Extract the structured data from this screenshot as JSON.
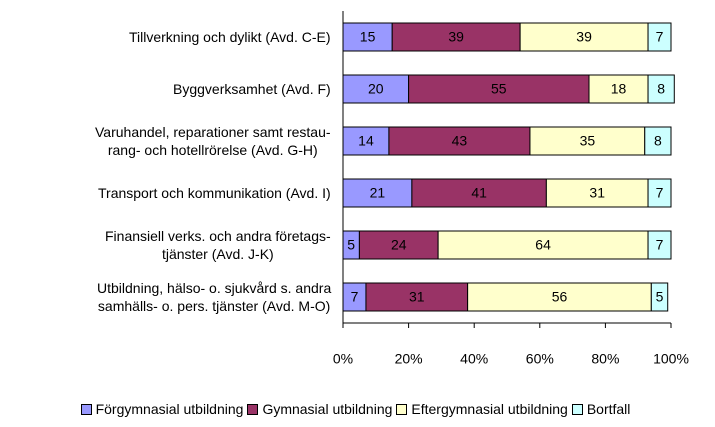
{
  "chart_data": {
    "type": "stacked_barh",
    "categories": [
      "Tillverkning och dylikt (Avd. C-E)",
      "Byggverksamhet (Avd. F)",
      "Varuhandel, reparationer samt restau-\nrang- och hotellrörelse (Avd. G-H)",
      "Transport och kommunikation (Avd. I)",
      "Finansiell verks. och andra företags-\ntjänster (Avd. J-K)",
      "Utbildning, hälso- o. sjukvård s. andra\nsamhälls- o. pers. tjänster (Avd. M-O)"
    ],
    "series": [
      {
        "name": "Förgymnasial utbildning",
        "color": "#9999ff",
        "values": [
          15,
          20,
          14,
          21,
          5,
          7
        ]
      },
      {
        "name": "Gymnasial utbildning",
        "color": "#993366",
        "values": [
          39,
          55,
          43,
          41,
          24,
          31
        ]
      },
      {
        "name": "Eftergymnasial utbildning",
        "color": "#ffffcc",
        "values": [
          39,
          18,
          35,
          31,
          64,
          56
        ]
      },
      {
        "name": "Bortfall",
        "color": "#ccffff",
        "values": [
          7,
          8,
          8,
          7,
          7,
          5
        ]
      }
    ],
    "xlim": [
      0,
      100
    ],
    "xticks": [
      {
        "value": 0,
        "label": "0%"
      },
      {
        "value": 20,
        "label": "20%"
      },
      {
        "value": 40,
        "label": "40%"
      },
      {
        "value": 60,
        "label": "60%"
      },
      {
        "value": 80,
        "label": "80%"
      },
      {
        "value": 100,
        "label": "100%"
      }
    ],
    "legend": "bottom"
  }
}
